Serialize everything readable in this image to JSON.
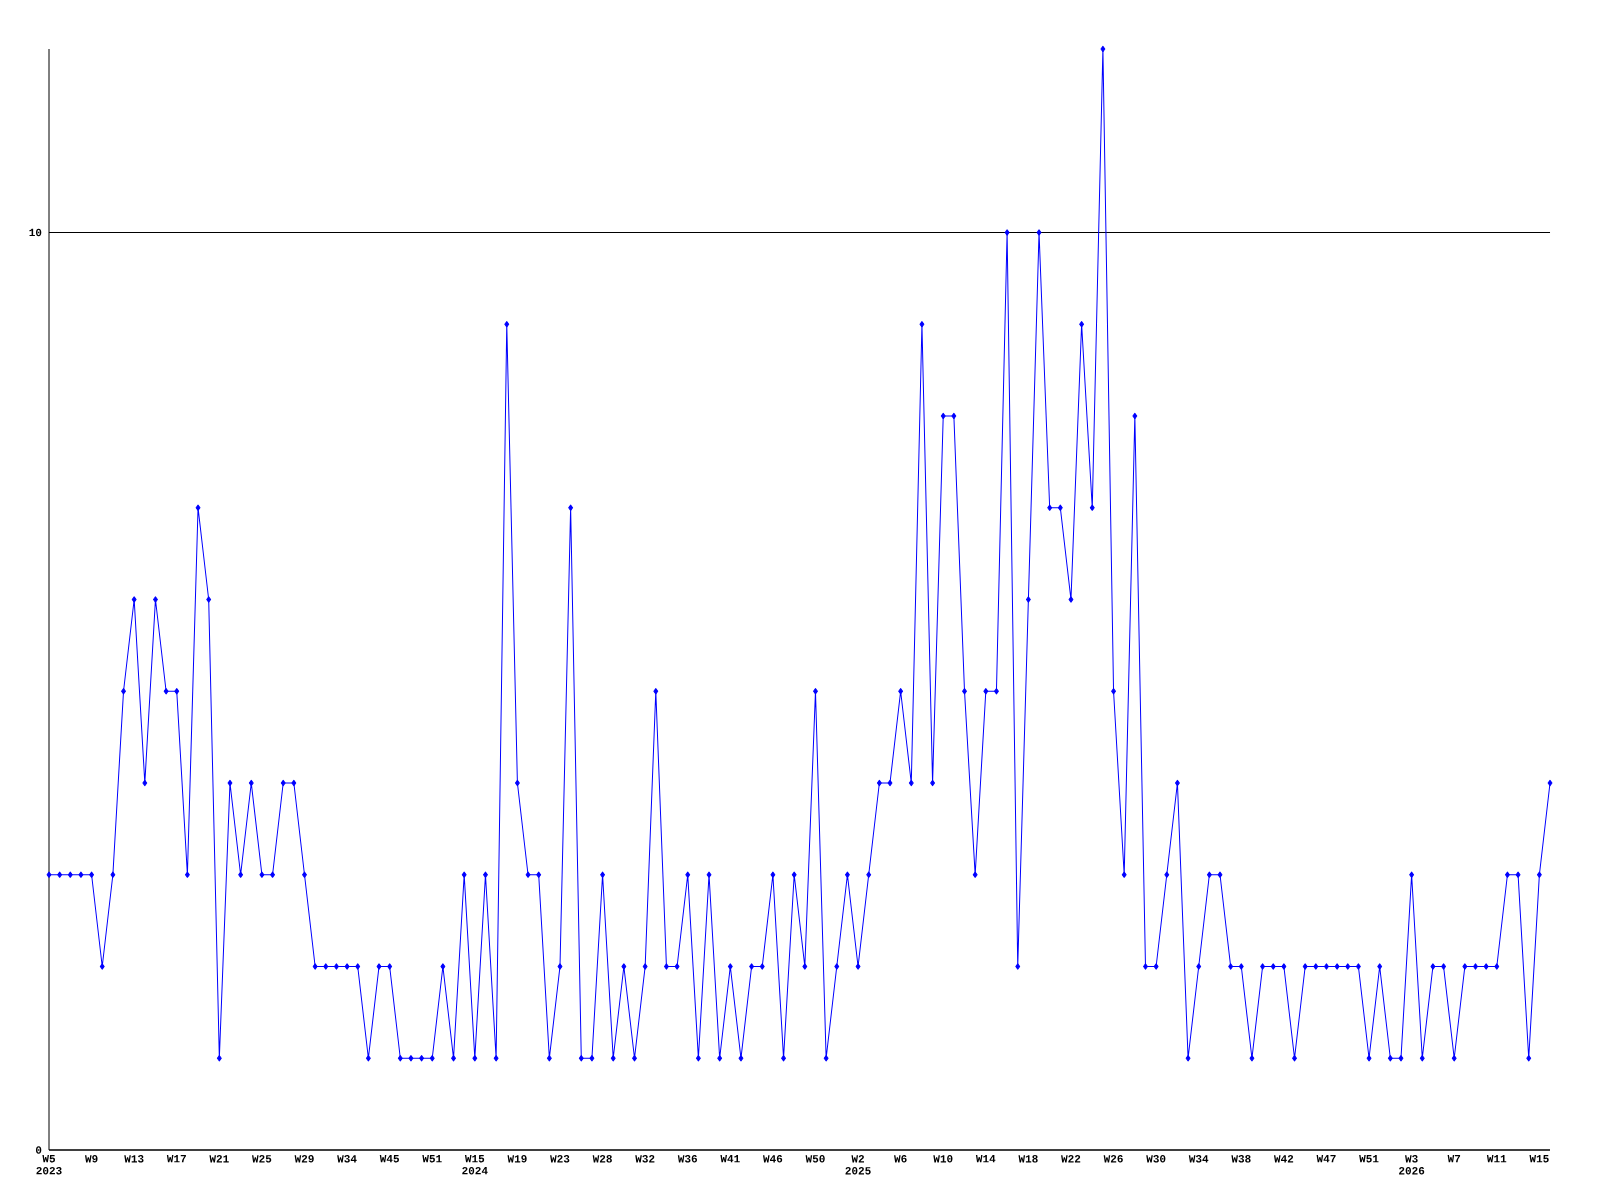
{
  "chart_data": {
    "type": "line",
    "categories": [
      "W5 2023",
      null,
      null,
      null,
      "W9",
      null,
      null,
      null,
      "W13",
      null,
      null,
      null,
      "W17",
      null,
      null,
      null,
      "W21",
      null,
      null,
      null,
      "W25",
      null,
      null,
      null,
      "W29",
      null,
      null,
      null,
      "W34",
      null,
      null,
      null,
      "W45",
      null,
      null,
      null,
      "W51",
      null,
      null,
      null,
      "W15 2024",
      null,
      null,
      null,
      "W19",
      null,
      null,
      null,
      "W23",
      null,
      null,
      null,
      "W28",
      null,
      null,
      null,
      "W32",
      null,
      null,
      null,
      "W36",
      null,
      null,
      null,
      "W41",
      null,
      null,
      null,
      "W46",
      null,
      null,
      null,
      "W50",
      null,
      null,
      null,
      "W2 2025",
      null,
      null,
      null,
      "W6",
      null,
      null,
      null,
      "W10",
      null,
      null,
      null,
      "W14",
      null,
      null,
      null,
      "W18",
      null,
      null,
      null,
      "W22",
      null,
      null,
      null,
      "W26",
      null,
      null,
      null,
      "W30",
      null,
      null,
      null,
      "W34",
      null,
      null,
      null,
      "W38",
      null,
      null,
      null,
      "W42",
      null,
      null,
      null,
      "W47",
      null,
      null,
      null,
      "W51",
      null,
      null,
      null,
      "W3 2026",
      null,
      null,
      null,
      "W7",
      null,
      null,
      null,
      "W11",
      null,
      null,
      null,
      "W15",
      null
    ],
    "values": [
      3,
      3,
      3,
      3,
      3,
      2,
      3,
      5,
      6,
      4,
      6,
      5,
      5,
      3,
      7,
      6,
      1,
      4,
      3,
      4,
      3,
      3,
      4,
      4,
      3,
      2,
      2,
      2,
      2,
      2,
      1,
      2,
      2,
      1,
      1,
      1,
      1,
      2,
      1,
      3,
      1,
      3,
      1,
      9,
      4,
      3,
      3,
      1,
      2,
      7,
      1,
      1,
      3,
      1,
      2,
      1,
      2,
      5,
      2,
      2,
      3,
      1,
      3,
      1,
      2,
      1,
      2,
      2,
      3,
      1,
      3,
      2,
      5,
      1,
      2,
      3,
      2,
      3,
      4,
      4,
      5,
      4,
      9,
      4,
      8,
      8,
      5,
      3,
      5,
      5,
      10,
      2,
      6,
      10,
      7,
      7,
      6,
      9,
      7,
      12,
      5,
      3,
      8,
      2,
      2,
      3,
      4,
      1,
      2,
      3,
      3,
      2,
      2,
      1,
      2,
      2,
      2,
      1,
      2,
      2,
      2,
      2,
      2,
      2,
      1,
      2,
      1,
      1,
      3,
      1,
      2,
      2,
      1,
      2,
      2,
      2,
      2,
      3,
      3,
      1,
      3,
      4
    ],
    "color": "#0000ff",
    "ylim": [
      0,
      12
    ],
    "yticks": [
      0,
      10
    ],
    "grid": "y",
    "marker": "diamond",
    "line_style": "solid"
  }
}
